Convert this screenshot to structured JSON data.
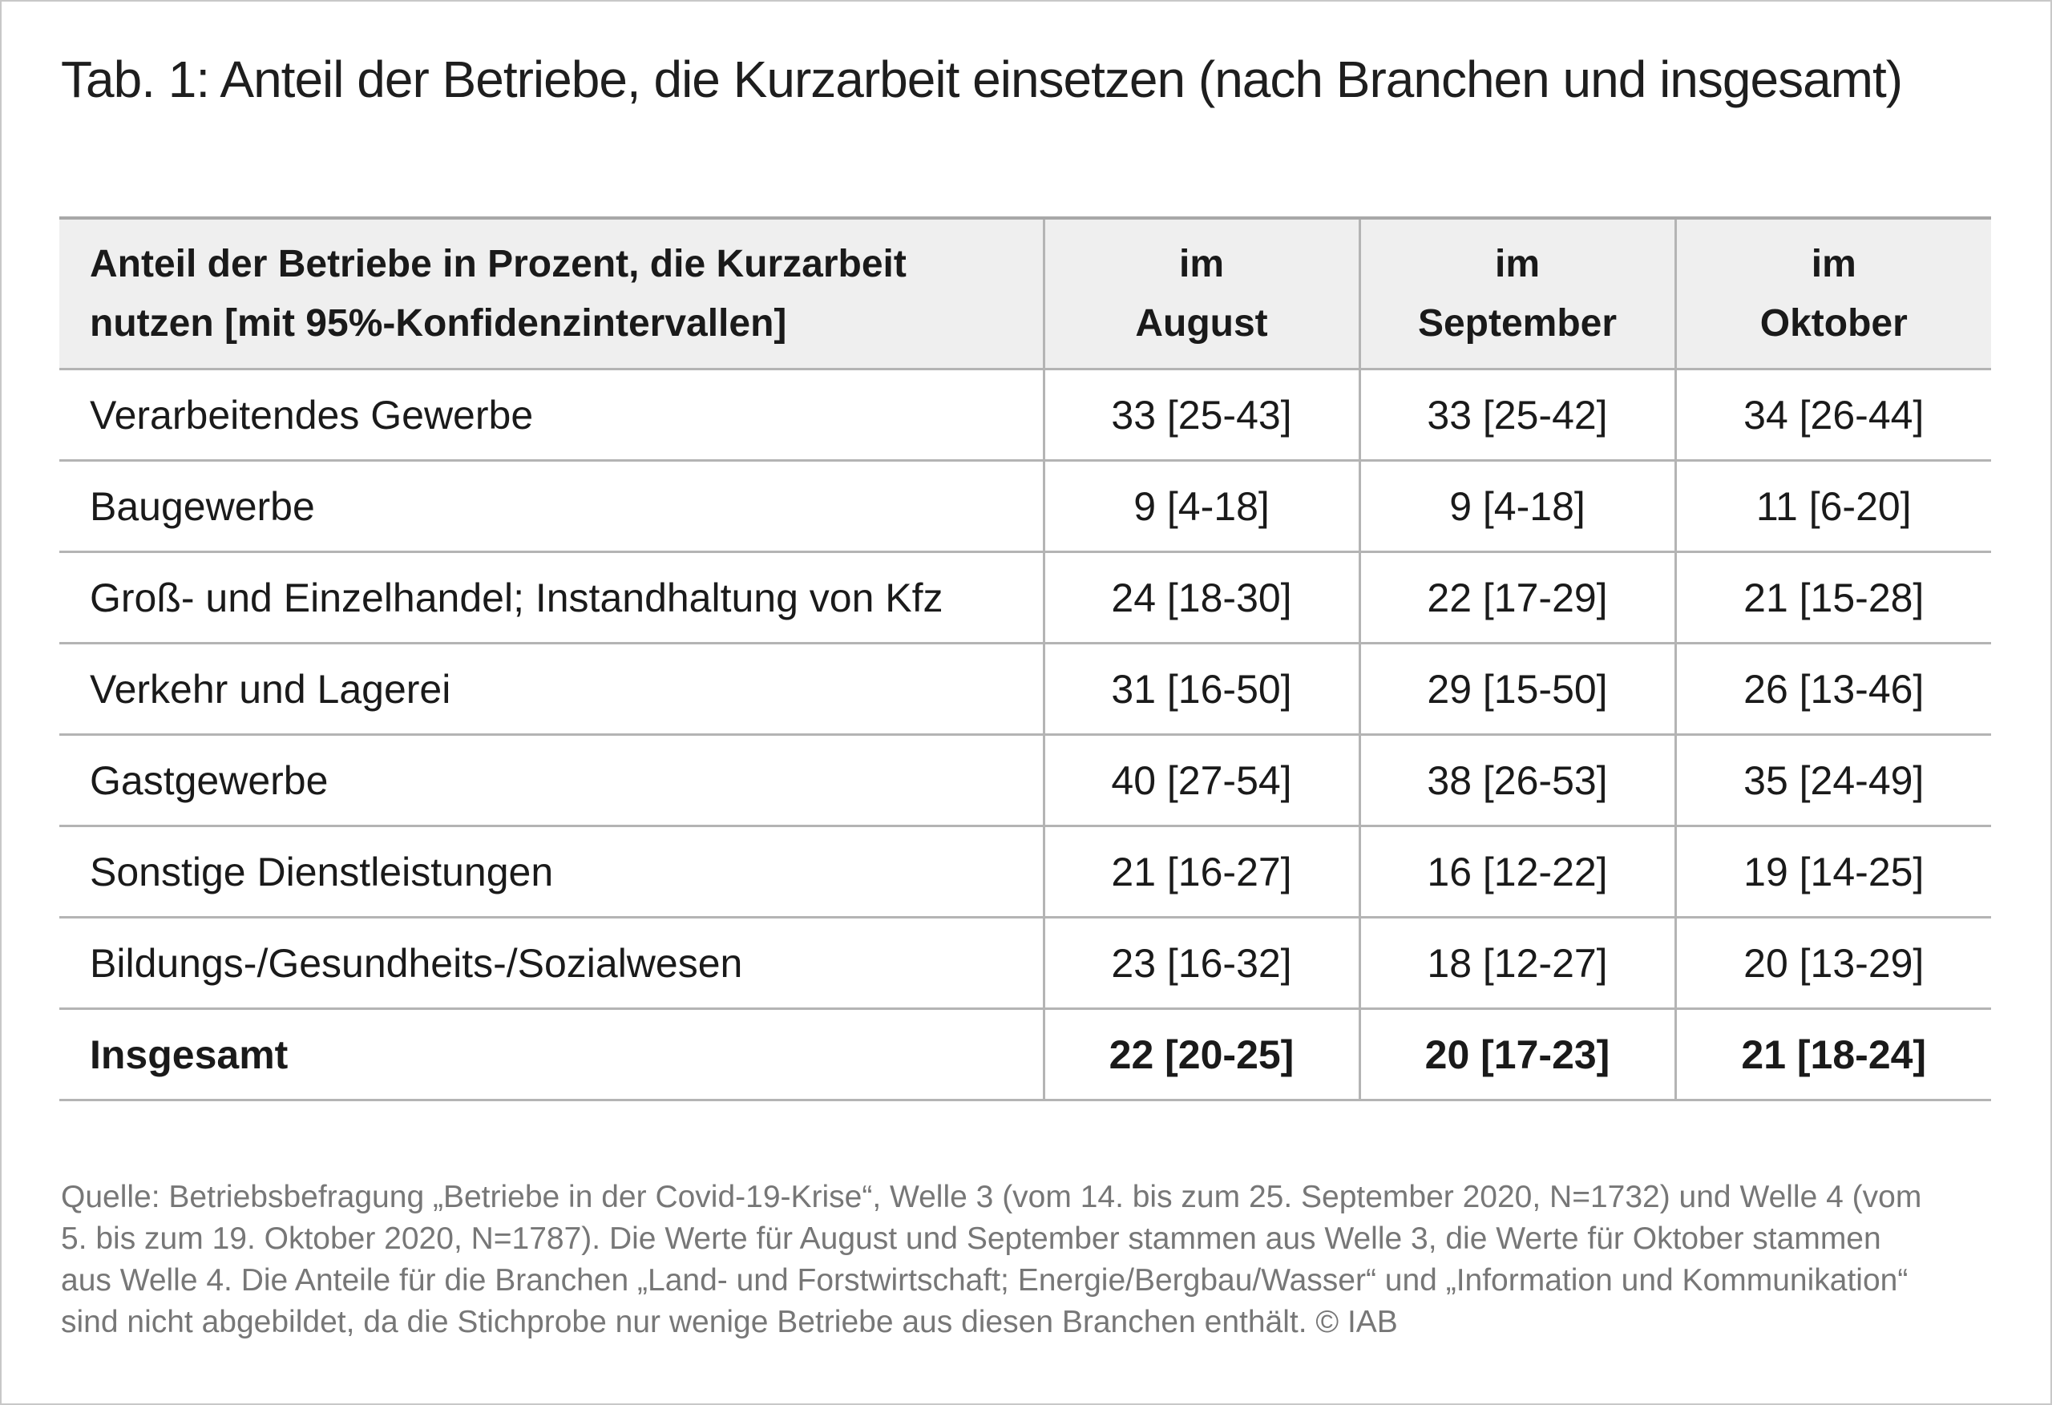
{
  "title": "Tab. 1: Anteil der Betriebe, die Kurzarbeit einsetzen (nach Branchen und insgesamt)",
  "table": {
    "header": {
      "label_line1": "Anteil der Betriebe in Prozent, die Kurzarbeit",
      "label_line2": "nutzen [mit 95%-Konfidenzintervallen]",
      "columns": [
        {
          "line1": "im",
          "line2": "August"
        },
        {
          "line1": "im",
          "line2": "September"
        },
        {
          "line1": "im",
          "line2": "Oktober"
        }
      ]
    },
    "rows": [
      {
        "label": "Verarbeitendes Gewerbe",
        "values": [
          "33 [25-43]",
          "33 [25-42]",
          "34 [26-44]"
        ]
      },
      {
        "label": "Baugewerbe",
        "values": [
          "9 [4-18]",
          "9 [4-18]",
          "11 [6-20]"
        ]
      },
      {
        "label": "Groß- und Einzelhandel; Instandhaltung von Kfz",
        "values": [
          "24 [18-30]",
          "22 [17-29]",
          "21 [15-28]"
        ]
      },
      {
        "label": "Verkehr und Lagerei",
        "values": [
          "31 [16-50]",
          "29 [15-50]",
          "26 [13-46]"
        ]
      },
      {
        "label": "Gastgewerbe",
        "values": [
          "40 [27-54]",
          "38 [26-53]",
          "35 [24-49]"
        ]
      },
      {
        "label": "Sonstige Dienstleistungen",
        "values": [
          "21 [16-27]",
          "16 [12-22]",
          "19 [14-25]"
        ]
      },
      {
        "label": "Bildungs-/Gesundheits-/Sozialwesen",
        "values": [
          "23 [16-32]",
          "18 [12-27]",
          "20 [13-29]"
        ]
      },
      {
        "label": "Insgesamt",
        "values": [
          "22 [20-25]",
          "20 [17-23]",
          "21 [18-24]"
        ]
      }
    ]
  },
  "source": "Quelle: Betriebsbefragung „Betriebe in der Covid-19-Krise“, Welle 3 (vom 14. bis zum 25. September 2020, N=1732) und Welle 4 (vom 5. bis zum 19. Oktober 2020, N=1787). Die Werte für August und September stammen aus Welle 3, die Werte für Oktober stammen aus Welle 4. Die Anteile für die Branchen „Land- und Forstwirtschaft; Energie/Bergbau/Wasser“ und „Information und Kommunikation“ sind nicht abgebildet, da die Stichprobe nur wenige Betriebe aus diesen Branchen enthält. © IAB"
}
